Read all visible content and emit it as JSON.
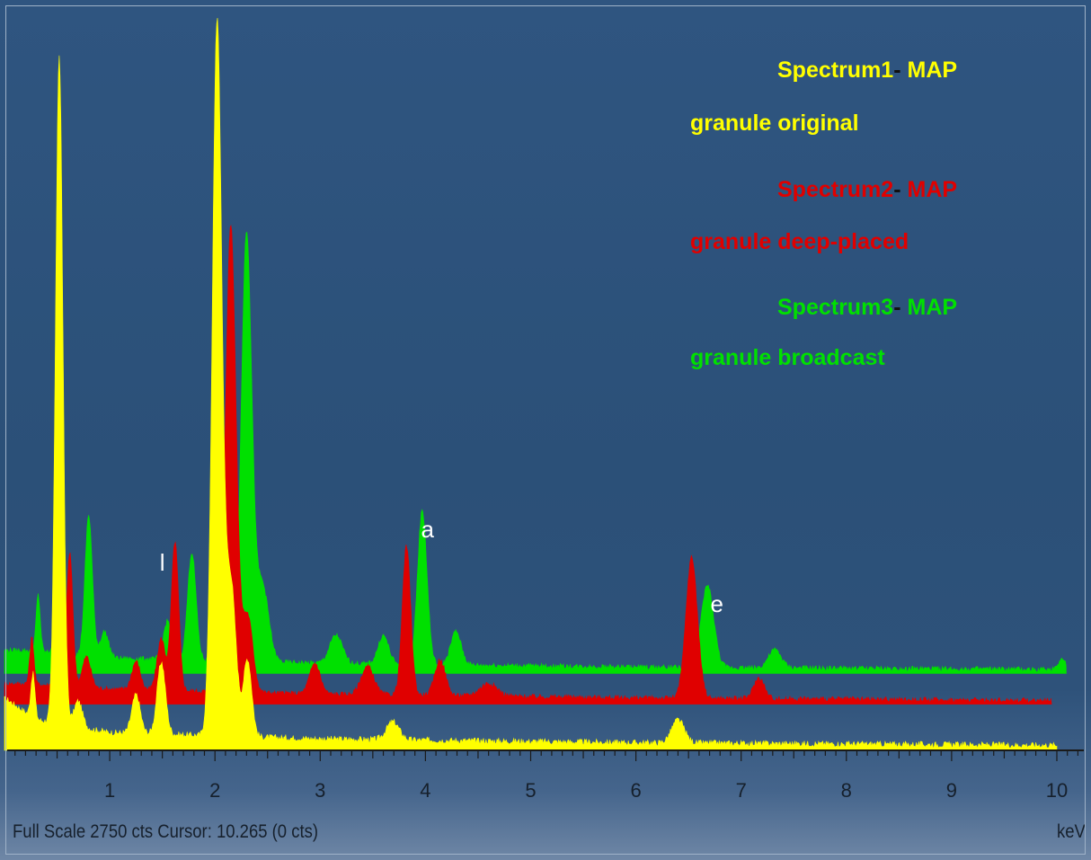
{
  "chart_data": {
    "type": "area",
    "x_unit": "keV",
    "xlim": [
      0,
      10.265
    ],
    "ylim": [
      0,
      2750
    ],
    "x_ticks": [
      "1",
      "2",
      "3",
      "4",
      "5",
      "6",
      "7",
      "8",
      "9",
      "10"
    ],
    "legend": [
      {
        "spectrum": "Spectrum1",
        "sep": "-",
        "suffix": " MAP",
        "line2": "granule original",
        "color": "#ffff00"
      },
      {
        "spectrum": "Spectrum2",
        "sep": "-",
        "suffix": " MAP",
        "line2": "granule deep-placed",
        "color": "#e00000"
      },
      {
        "spectrum": "Spectrum3",
        "sep": "-",
        "suffix": " MAP",
        "line2": "granule broadcast",
        "color": "#00e000"
      }
    ],
    "series": [
      {
        "name": "Spectrum1",
        "color": "#ffff00",
        "baseline": 0,
        "noise": 12,
        "background": [
          [
            0.02,
            200
          ],
          [
            0.3,
            120
          ],
          [
            1.0,
            70
          ],
          [
            3.0,
            45
          ],
          [
            6.0,
            30
          ],
          [
            10.0,
            20
          ]
        ],
        "peaks": [
          [
            0.27,
            170,
            0.02
          ],
          [
            0.52,
            2600,
            0.035
          ],
          [
            0.7,
            100,
            0.04
          ],
          [
            1.25,
            150,
            0.04
          ],
          [
            1.49,
            280,
            0.04
          ],
          [
            2.02,
            2780,
            0.045
          ],
          [
            2.15,
            600,
            0.05
          ],
          [
            2.31,
            300,
            0.04
          ],
          [
            3.69,
            70,
            0.06
          ],
          [
            6.4,
            90,
            0.06
          ]
        ]
      },
      {
        "name": "Spectrum2",
        "color": "#e00000",
        "baseline": 180,
        "noise": 10,
        "background": [
          [
            0.2,
            80
          ],
          [
            1.0,
            60
          ],
          [
            3.0,
            40
          ],
          [
            6.0,
            25
          ],
          [
            9.95,
            15
          ]
        ],
        "peaks": [
          [
            0.26,
            180,
            0.02
          ],
          [
            0.52,
            200,
            0.03
          ],
          [
            0.62,
            520,
            0.03
          ],
          [
            0.78,
            120,
            0.04
          ],
          [
            1.25,
            110,
            0.04
          ],
          [
            1.49,
            200,
            0.04
          ],
          [
            1.62,
            580,
            0.035
          ],
          [
            2.15,
            1820,
            0.05
          ],
          [
            2.31,
            300,
            0.05
          ],
          [
            2.95,
            120,
            0.05
          ],
          [
            3.45,
            110,
            0.06
          ],
          [
            3.82,
            580,
            0.04
          ],
          [
            4.14,
            140,
            0.05
          ],
          [
            4.6,
            50,
            0.08
          ],
          [
            6.53,
            550,
            0.055
          ],
          [
            7.17,
            80,
            0.05
          ]
        ]
      },
      {
        "name": "Spectrum3",
        "color": "#00e000",
        "baseline": 300,
        "noise": 10,
        "background": [
          [
            0.2,
            90
          ],
          [
            1.0,
            60
          ],
          [
            3.0,
            40
          ],
          [
            6.0,
            25
          ],
          [
            10.09,
            15
          ]
        ],
        "peaks": [
          [
            0.32,
            220,
            0.02
          ],
          [
            0.5,
            120,
            0.03
          ],
          [
            0.8,
            550,
            0.035
          ],
          [
            0.95,
            100,
            0.04
          ],
          [
            1.55,
            150,
            0.04
          ],
          [
            1.78,
            420,
            0.04
          ],
          [
            2.3,
            1670,
            0.05
          ],
          [
            2.45,
            300,
            0.06
          ],
          [
            3.15,
            110,
            0.06
          ],
          [
            3.6,
            110,
            0.05
          ],
          [
            3.97,
            600,
            0.045
          ],
          [
            4.29,
            130,
            0.05
          ],
          [
            6.68,
            320,
            0.06
          ],
          [
            7.32,
            70,
            0.06
          ],
          [
            10.05,
            40,
            0.04
          ]
        ]
      }
    ],
    "annotations": [
      {
        "text": "l",
        "x": 1.5,
        "y": 700,
        "color": "#ffffff"
      },
      {
        "text": "a",
        "x": 4.02,
        "y": 830,
        "color": "#ffffff"
      },
      {
        "text": "e",
        "x": 6.77,
        "y": 540,
        "color": "#ffffff"
      }
    ],
    "footer": {
      "left": "Full Scale 2750 cts Cursor: 10.265  (0 cts)",
      "right": "keV"
    }
  }
}
